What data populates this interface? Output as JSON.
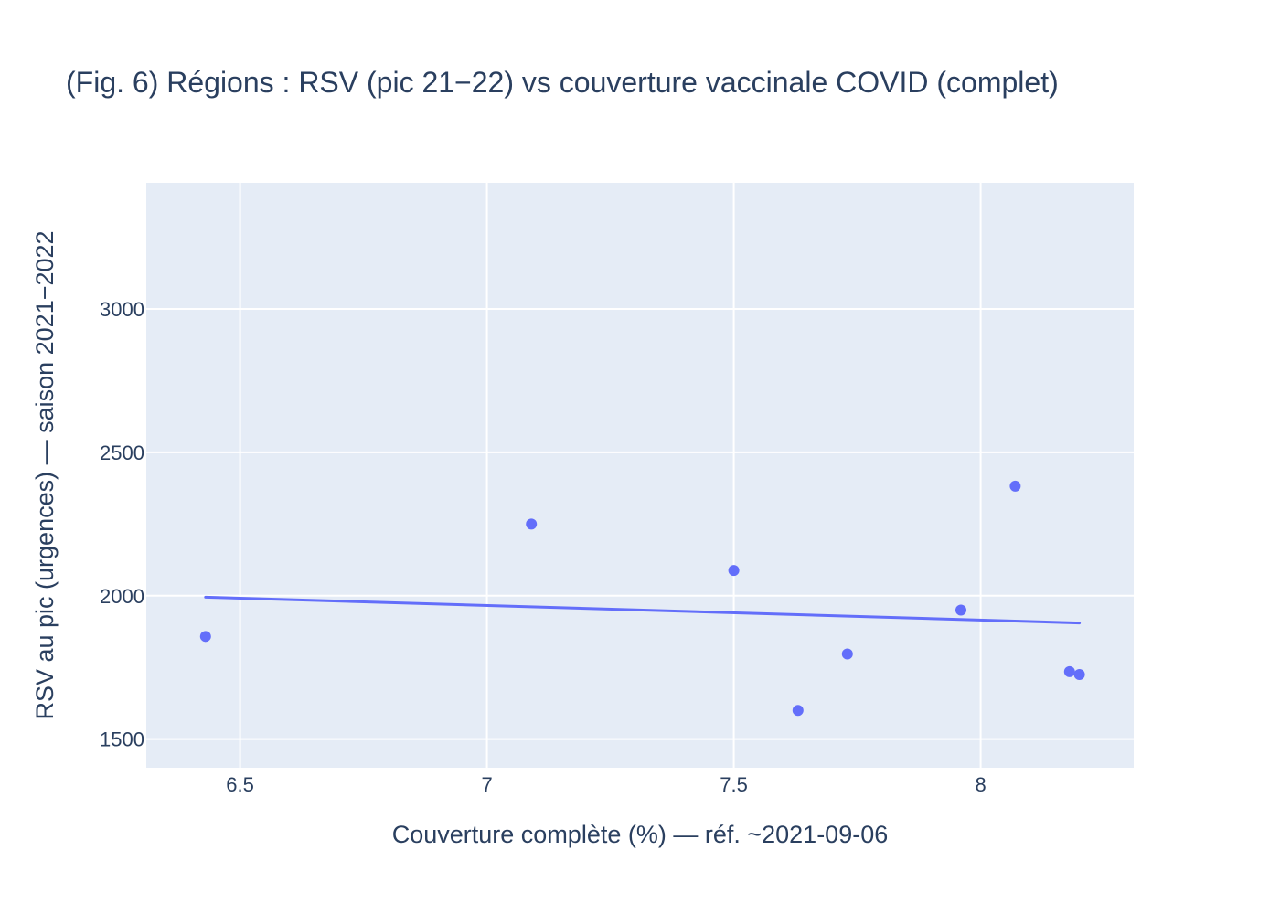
{
  "chart_data": {
    "type": "scatter",
    "title": "(Fig. 6) Régions : RSV (pic 21−22) vs couverture vaccinale COVID (complet)",
    "xlabel": "Couverture complète (%) — réf. ~2021-09-06",
    "ylabel": "RSV au pic (urgences) — saison 2021−2022",
    "xlim": [
      6.31,
      8.31
    ],
    "ylim": [
      1400,
      3440
    ],
    "x_ticks": [
      6.5,
      7,
      7.5,
      8
    ],
    "x_tick_labels": [
      "6.5",
      "7",
      "7.5",
      "8"
    ],
    "y_ticks": [
      1500,
      2000,
      2500,
      3000
    ],
    "y_tick_labels": [
      "1500",
      "2000",
      "2500",
      "3000"
    ],
    "grid": true,
    "legend": false,
    "colors": {
      "plot_bg": "#e5ecf6",
      "grid": "#ffffff",
      "marker": "#636efa",
      "line": "#636efa",
      "text": "#2a3f5f"
    },
    "series": [
      {
        "type": "scatter",
        "x": [
          6.43,
          7.09,
          7.5,
          7.63,
          7.73,
          7.96,
          8.07,
          8.18,
          8.2
        ],
        "y": [
          1858,
          2250,
          2088,
          1600,
          1797,
          1950,
          2382,
          1735,
          1725
        ]
      },
      {
        "type": "line",
        "x": [
          6.43,
          8.2
        ],
        "y": [
          1995,
          1905
        ]
      }
    ]
  }
}
